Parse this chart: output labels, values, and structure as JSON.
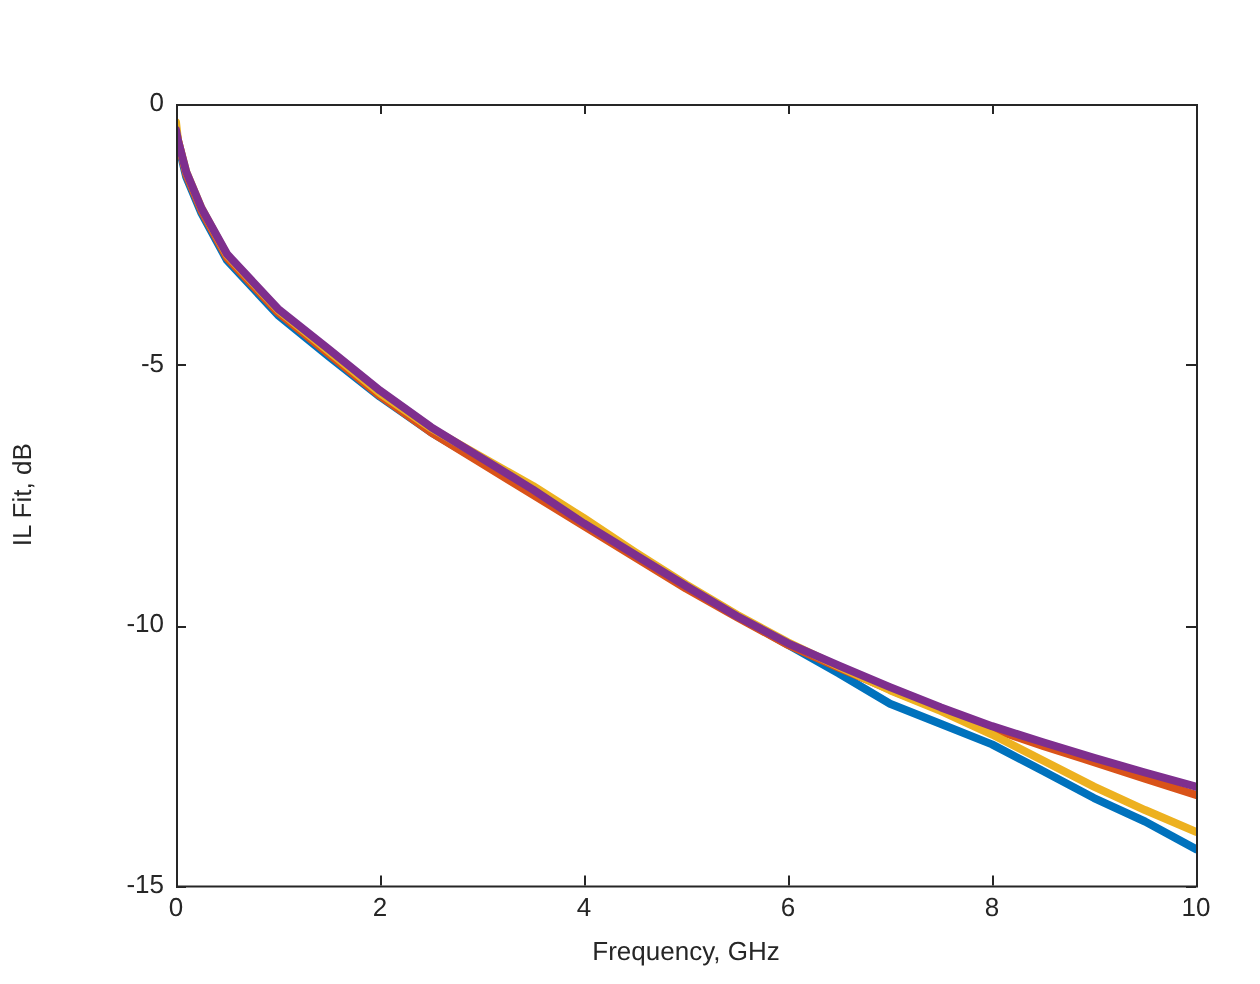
{
  "chart_data": {
    "type": "line",
    "xlabel": "Frequency, GHz",
    "ylabel": "IL Fit, dB",
    "x": [
      0,
      0.02,
      0.1,
      0.25,
      0.5,
      1,
      1.5,
      2,
      2.5,
      3,
      3.5,
      4,
      4.5,
      5,
      5.5,
      6,
      6.5,
      7,
      7.5,
      8,
      8.5,
      9,
      9.5,
      10
    ],
    "series": [
      {
        "color": "#0072bd",
        "values": [
          -0.5,
          -0.75,
          -1.4,
          -2.1,
          -3.0,
          -4.05,
          -4.85,
          -5.62,
          -6.3,
          -6.88,
          -7.45,
          -8.05,
          -8.65,
          -9.25,
          -9.83,
          -10.38,
          -10.93,
          -11.51,
          -11.9,
          -12.29,
          -12.8,
          -13.32,
          -13.77,
          -14.3
        ]
      },
      {
        "color": "#d95319",
        "values": [
          -0.5,
          -0.7,
          -1.35,
          -2.05,
          -2.95,
          -4.0,
          -4.8,
          -5.6,
          -6.3,
          -6.9,
          -7.5,
          -8.1,
          -8.7,
          -9.3,
          -9.85,
          -10.38,
          -10.82,
          -11.24,
          -11.63,
          -11.99,
          -12.32,
          -12.63,
          -12.95,
          -13.26
        ]
      },
      {
        "color": "#edb120",
        "values": [
          -0.35,
          -0.7,
          -1.3,
          -2.0,
          -2.9,
          -3.95,
          -4.75,
          -5.55,
          -6.22,
          -6.78,
          -7.33,
          -7.95,
          -8.6,
          -9.22,
          -9.8,
          -10.33,
          -10.8,
          -11.25,
          -11.65,
          -12.1,
          -12.6,
          -13.1,
          -13.55,
          -13.97
        ]
      },
      {
        "color": "#7e2f8e",
        "values": [
          -0.5,
          -0.7,
          -1.3,
          -2.0,
          -2.88,
          -3.93,
          -4.71,
          -5.5,
          -6.2,
          -6.8,
          -7.4,
          -8.05,
          -8.65,
          -9.25,
          -9.83,
          -10.35,
          -10.78,
          -11.19,
          -11.58,
          -11.94,
          -12.25,
          -12.55,
          -12.83,
          -13.1
        ]
      }
    ],
    "xlim": [
      0,
      10
    ],
    "xticks": [
      0,
      2,
      4,
      6,
      8,
      10
    ],
    "ylim": [
      -15,
      0
    ],
    "yticks": [
      -15,
      -10,
      -5,
      0
    ],
    "legend": false,
    "grid": false,
    "marker": "none",
    "line_style": "solid"
  }
}
